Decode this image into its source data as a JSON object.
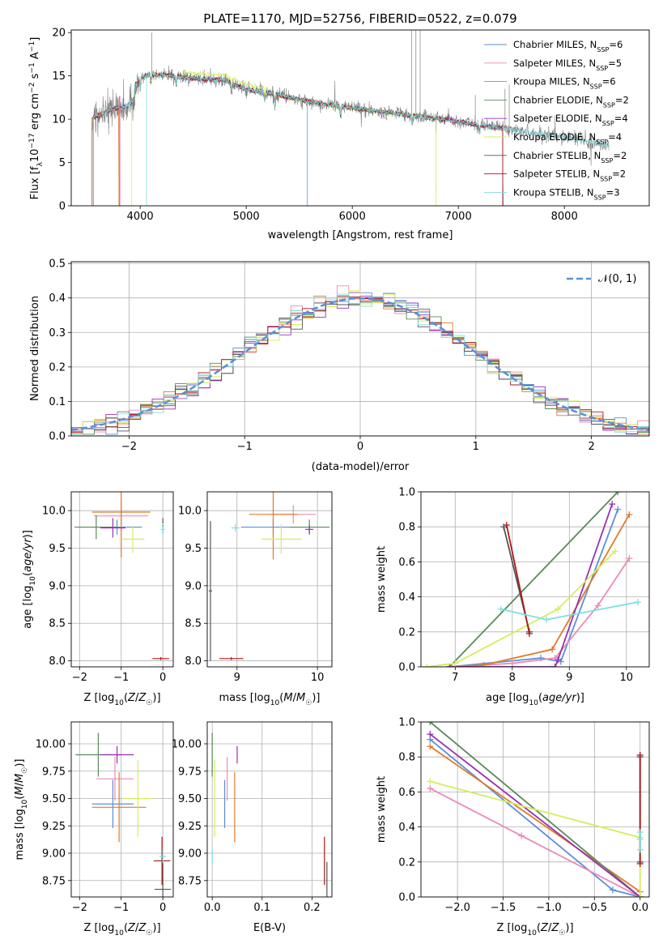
{
  "colors": {
    "chabrier_miles": "#5b8fd8",
    "salpeter_miles": "#e98bb8",
    "kroupa_miles": "#e07b28",
    "chabrier_elodie": "#5a8a5a",
    "salpeter_elodie": "#9b30b0",
    "kroupa_elodie": "#d4ee5c",
    "chabrier_stelib": "#555555",
    "salpeter_stelib": "#b01818",
    "kroupa_stelib": "#7ee0e0",
    "spectrum": "#808080",
    "grid": "#b0b0b0"
  },
  "chart_data": [
    {
      "id": "spectrum",
      "type": "line",
      "title": "PLATE=1170, MJD=52756, FIBERID=0522, z=0.079",
      "xlabel": "wavelength [Angstrom, rest frame]",
      "ylabel": "Flux [fλ10⁻¹⁷ erg cm⁻² s⁻¹ A⁻¹]",
      "xlim": [
        3350,
        8800
      ],
      "ylim": [
        0,
        20.3
      ],
      "xticks": [
        4000,
        5000,
        6000,
        7000,
        8000
      ],
      "yticks": [
        0,
        5,
        10,
        15,
        20
      ],
      "grid": false,
      "legend_position": "top-right",
      "legend": [
        {
          "label": "Chabrier MILES, N",
          "sub": "SSP",
          "tail": "=6",
          "color_key": "chabrier_miles"
        },
        {
          "label": "Salpeter MILES, N",
          "sub": "SSP",
          "tail": "=5",
          "color_key": "salpeter_miles"
        },
        {
          "label": "Kroupa MILES, N",
          "sub": "SSP",
          "tail": "=6",
          "color_key": "kroupa_miles"
        },
        {
          "label": "Chabrier ELODIE, N",
          "sub": "SSP",
          "tail": "=2",
          "color_key": "chabrier_elodie"
        },
        {
          "label": "Salpeter ELODIE, N",
          "sub": "SSP",
          "tail": "=4",
          "color_key": "salpeter_elodie"
        },
        {
          "label": "Kroupa ELODIE, N",
          "sub": "SSP",
          "tail": "=4",
          "color_key": "kroupa_elodie"
        },
        {
          "label": "Chabrier STELIB, N",
          "sub": "SSP",
          "tail": "=2",
          "color_key": "chabrier_stelib"
        },
        {
          "label": "Salpeter STELIB, N",
          "sub": "SSP",
          "tail": "=2",
          "color_key": "salpeter_stelib"
        },
        {
          "label": "Kroupa STELIB, N",
          "sub": "SSP",
          "tail": "=3",
          "color_key": "kroupa_stelib"
        }
      ],
      "continuum": {
        "x": [
          3550,
          3700,
          3900,
          4000,
          4100,
          4300,
          4500,
          4800,
          5000,
          5300,
          5600,
          6000,
          6300,
          6600,
          6900,
          7200,
          7500,
          7800,
          8100,
          8400
        ],
        "y": [
          11.5,
          12.3,
          13.0,
          14.8,
          15.2,
          15.0,
          14.7,
          14.5,
          13.4,
          12.8,
          12.0,
          11.3,
          10.8,
          10.4,
          9.9,
          9.3,
          8.8,
          8.3,
          7.7,
          7.0
        ]
      }
    },
    {
      "id": "residuals",
      "type": "histogram",
      "xlabel": "(data-model)/error",
      "ylabel": "Normed distribution",
      "xlim": [
        -2.5,
        2.5
      ],
      "ylim": [
        0,
        0.505
      ],
      "xticks": [
        -2,
        -1,
        0,
        1,
        2
      ],
      "yticks": [
        0.0,
        0.1,
        0.2,
        0.3,
        0.4,
        0.5
      ],
      "grid": true,
      "bin_width": 0.1,
      "legend_position": "top-right",
      "legend_label": "𝒩(0, 1)",
      "reference_curve": "normal distribution, mean 0, sigma 1"
    },
    {
      "id": "age_vs_z",
      "type": "errorbar",
      "xlabel": "Z [log10(Z/Z☉)]",
      "ylabel": "age  [log10(age/yr)]",
      "xlim": [
        -2.2,
        0.25
      ],
      "ylim": [
        7.92,
        10.25
      ],
      "xticks": [
        -2,
        -1,
        0
      ],
      "yticks": [
        8.0,
        8.5,
        9.0,
        9.5,
        10.0
      ],
      "grid": true,
      "points": [
        {
          "color_key": "chabrier_miles",
          "x": -1.1,
          "xerr": 0.6,
          "y": 9.78,
          "yerr": 0.1
        },
        {
          "color_key": "salpeter_miles",
          "x": -1.0,
          "xerr": 0.65,
          "y": 9.93,
          "yerr": 0.2
        },
        {
          "color_key": "kroupa_miles",
          "x": -1.0,
          "xerr": 0.7,
          "y": 9.98,
          "yerr": 0.6
        },
        {
          "color_key": "chabrier_elodie",
          "x": -1.6,
          "xerr": 0.52,
          "y": 9.78,
          "yerr": 0.16
        },
        {
          "color_key": "salpeter_elodie",
          "x": -1.2,
          "xerr": 0.3,
          "y": 9.77,
          "yerr": 0.13
        },
        {
          "color_key": "kroupa_elodie",
          "x": -0.72,
          "xerr": 0.28,
          "y": 9.62,
          "yerr": 0.18
        },
        {
          "color_key": "chabrier_stelib",
          "x": 0.0,
          "xerr": 0.02,
          "y": 9.8,
          "yerr": 0.1
        },
        {
          "color_key": "salpeter_stelib",
          "x": -0.05,
          "xerr": 0.2,
          "y": 8.03,
          "yerr": 0.02
        },
        {
          "color_key": "kroupa_stelib",
          "x": 0.0,
          "xerr": 0.05,
          "y": 9.75,
          "yerr": 0.08
        }
      ]
    },
    {
      "id": "age_vs_mass",
      "type": "errorbar",
      "xlabel": "mass [log10(M/M☉)]",
      "ylabel": "",
      "xlim": [
        8.63,
        10.18
      ],
      "ylim": [
        7.92,
        10.25
      ],
      "xticks": [
        9,
        10
      ],
      "yticks": [
        8.0,
        8.5,
        9.0,
        9.5,
        10.0
      ],
      "grid": true,
      "points": [
        {
          "color_key": "chabrier_miles",
          "x": 9.45,
          "xerr": 0.4,
          "y": 9.78,
          "yerr": 0.1
        },
        {
          "color_key": "salpeter_miles",
          "x": 9.7,
          "xerr": 0.28,
          "y": 9.95,
          "yerr": 0.12
        },
        {
          "color_key": "kroupa_miles",
          "x": 9.45,
          "xerr": 0.3,
          "y": 9.95,
          "yerr": 0.6
        },
        {
          "color_key": "chabrier_elodie",
          "x": 9.9,
          "xerr": 0.25,
          "y": 9.78,
          "yerr": 0.1
        },
        {
          "color_key": "salpeter_elodie",
          "x": 9.9,
          "xerr": 0.05,
          "y": 9.75,
          "yerr": 0.06
        },
        {
          "color_key": "kroupa_elodie",
          "x": 9.55,
          "xerr": 0.25,
          "y": 9.62,
          "yerr": 0.2
        },
        {
          "color_key": "chabrier_stelib",
          "x": 8.67,
          "xerr": 0.02,
          "y": 8.93,
          "yerr": 0.93
        },
        {
          "color_key": "salpeter_stelib",
          "x": 8.93,
          "xerr": 0.15,
          "y": 8.03,
          "yerr": 0.02
        },
        {
          "color_key": "kroupa_stelib",
          "x": 8.98,
          "xerr": 0.05,
          "y": 9.77,
          "yerr": 0.05
        }
      ]
    },
    {
      "id": "weight_vs_age",
      "type": "line",
      "xlabel": "age  [log10(age/yr)]",
      "ylabel": "mass weight",
      "xlim": [
        6.4,
        10.4
      ],
      "ylim": [
        0,
        1
      ],
      "xticks": [
        7,
        8,
        9,
        10
      ],
      "yticks": [
        0.0,
        0.2,
        0.4,
        0.6,
        0.8,
        1.0
      ],
      "grid": true,
      "series": [
        {
          "color_key": "chabrier_miles",
          "x": [
            6.9,
            8.5,
            8.85,
            9.85
          ],
          "y": [
            0.0,
            0.05,
            0.03,
            0.9
          ]
        },
        {
          "color_key": "salpeter_miles",
          "x": [
            6.9,
            8.0,
            8.75,
            9.5,
            10.05
          ],
          "y": [
            0.0,
            0.02,
            0.05,
            0.35,
            0.62
          ]
        },
        {
          "color_key": "kroupa_miles",
          "x": [
            6.9,
            7.5,
            8.7,
            10.05
          ],
          "y": [
            0.0,
            0.01,
            0.1,
            0.87
          ]
        },
        {
          "color_key": "chabrier_elodie",
          "x": [
            6.9,
            9.85
          ],
          "y": [
            0.0,
            1.0
          ]
        },
        {
          "color_key": "salpeter_elodie",
          "x": [
            6.9,
            8.75,
            8.8,
            9.75
          ],
          "y": [
            0.0,
            0.0,
            0.04,
            0.93
          ]
        },
        {
          "color_key": "kroupa_elodie",
          "x": [
            6.5,
            7.0,
            8.8,
            9.8
          ],
          "y": [
            0.0,
            0.02,
            0.33,
            0.66
          ]
        },
        {
          "color_key": "chabrier_stelib",
          "x": [
            7.85,
            8.3
          ],
          "y": [
            0.8,
            0.2
          ]
        },
        {
          "color_key": "salpeter_stelib",
          "x": [
            7.9,
            8.3
          ],
          "y": [
            0.81,
            0.19
          ]
        },
        {
          "color_key": "kroupa_stelib",
          "x": [
            7.8,
            8.6,
            10.2
          ],
          "y": [
            0.33,
            0.27,
            0.37
          ]
        }
      ]
    },
    {
      "id": "mass_vs_z",
      "type": "errorbar",
      "xlabel": "Z [log10(Z/Z☉)]",
      "ylabel": "mass [log10(M/M☉)]",
      "xlim": [
        -2.2,
        0.25
      ],
      "ylim": [
        8.6,
        10.2
      ],
      "xticks": [
        -2,
        -1,
        0
      ],
      "yticks": [
        8.75,
        9.0,
        9.25,
        9.5,
        9.75,
        10.0
      ],
      "grid": true,
      "points": [
        {
          "color_key": "chabrier_miles",
          "x": -1.2,
          "xerr": 0.5,
          "y": 9.45,
          "yerr": 0.22
        },
        {
          "color_key": "salpeter_miles",
          "x": -1.15,
          "xerr": 0.45,
          "y": 9.68,
          "yerr": 0.2
        },
        {
          "color_key": "kroupa_miles",
          "x": -1.05,
          "xerr": 0.65,
          "y": 9.42,
          "yerr": 0.32
        },
        {
          "color_key": "chabrier_elodie",
          "x": -1.55,
          "xerr": 0.55,
          "y": 9.9,
          "yerr": 0.2
        },
        {
          "color_key": "salpeter_elodie",
          "x": -1.1,
          "xerr": 0.4,
          "y": 9.9,
          "yerr": 0.08
        },
        {
          "color_key": "kroupa_elodie",
          "x": -0.6,
          "xerr": 0.35,
          "y": 9.5,
          "yerr": 0.35
        },
        {
          "color_key": "chabrier_stelib",
          "x": 0.0,
          "xerr": 0.2,
          "y": 8.67,
          "yerr": 0.25
        },
        {
          "color_key": "salpeter_stelib",
          "x": -0.02,
          "xerr": 0.2,
          "y": 8.93,
          "yerr": 0.22
        },
        {
          "color_key": "kroupa_stelib",
          "x": 0.0,
          "xerr": 0.08,
          "y": 8.97,
          "yerr": 0.06
        }
      ]
    },
    {
      "id": "mass_vs_ebv",
      "type": "errorbar",
      "xlabel": "E(B-V)",
      "ylabel": "",
      "xlim": [
        -0.01,
        0.24
      ],
      "ylim": [
        8.6,
        10.2
      ],
      "xticks": [
        0.0,
        0.1,
        0.2
      ],
      "yticks": [
        8.75,
        9.0,
        9.25,
        9.5,
        9.75,
        10.0
      ],
      "grid": true,
      "points": [
        {
          "color_key": "chabrier_miles",
          "x": 0.025,
          "xerr": 0,
          "y": 9.45,
          "yerr": 0.22
        },
        {
          "color_key": "salpeter_miles",
          "x": 0.03,
          "xerr": 0,
          "y": 9.68,
          "yerr": 0.2
        },
        {
          "color_key": "kroupa_miles",
          "x": 0.045,
          "xerr": 0,
          "y": 9.42,
          "yerr": 0.32
        },
        {
          "color_key": "chabrier_elodie",
          "x": 0.0,
          "xerr": 0,
          "y": 9.9,
          "yerr": 0.2
        },
        {
          "color_key": "salpeter_elodie",
          "x": 0.05,
          "xerr": 0,
          "y": 9.9,
          "yerr": 0.08
        },
        {
          "color_key": "kroupa_elodie",
          "x": 0.005,
          "xerr": 0,
          "y": 9.5,
          "yerr": 0.35
        },
        {
          "color_key": "chabrier_stelib",
          "x": 0.23,
          "xerr": 0,
          "y": 8.67,
          "yerr": 0.25
        },
        {
          "color_key": "salpeter_stelib",
          "x": 0.225,
          "xerr": 0,
          "y": 8.93,
          "yerr": 0.22
        },
        {
          "color_key": "kroupa_stelib",
          "x": 0.0,
          "xerr": 0,
          "y": 8.97,
          "yerr": 0.06
        }
      ]
    },
    {
      "id": "weight_vs_z",
      "type": "line",
      "xlabel": "Z [log10(Z/Z☉)]",
      "ylabel": "mass weight",
      "xlim": [
        -2.4,
        0.1
      ],
      "ylim": [
        0,
        1
      ],
      "xticks": [
        -2.0,
        -1.5,
        -1.0,
        -0.5,
        0.0
      ],
      "yticks": [
        0.0,
        0.2,
        0.4,
        0.6,
        0.8,
        1.0
      ],
      "grid": true,
      "series": [
        {
          "color_key": "chabrier_miles",
          "x": [
            -2.3,
            -0.3,
            0.0
          ],
          "y": [
            0.9,
            0.04,
            0.0
          ]
        },
        {
          "color_key": "salpeter_miles",
          "x": [
            -2.3,
            -1.3,
            0.0
          ],
          "y": [
            0.62,
            0.35,
            0.0
          ]
        },
        {
          "color_key": "kroupa_miles",
          "x": [
            -2.3,
            0.0,
            0.0
          ],
          "y": [
            0.86,
            0.03,
            0.0
          ]
        },
        {
          "color_key": "chabrier_elodie",
          "x": [
            -2.3,
            0.0
          ],
          "y": [
            1.0,
            0.0
          ]
        },
        {
          "color_key": "salpeter_elodie",
          "x": [
            -2.3,
            0.0
          ],
          "y": [
            0.93,
            0.0
          ]
        },
        {
          "color_key": "kroupa_elodie",
          "x": [
            -2.3,
            0.0,
            0.0
          ],
          "y": [
            0.66,
            0.34,
            0.0
          ]
        },
        {
          "color_key": "chabrier_stelib",
          "x": [
            0.0,
            0.0
          ],
          "y": [
            0.8,
            0.2
          ]
        },
        {
          "color_key": "salpeter_stelib",
          "x": [
            0.0,
            0.0
          ],
          "y": [
            0.81,
            0.19
          ]
        },
        {
          "color_key": "kroupa_stelib",
          "x": [
            0.0,
            0.0,
            0.0
          ],
          "y": [
            0.37,
            0.33,
            0.27
          ]
        }
      ]
    }
  ]
}
